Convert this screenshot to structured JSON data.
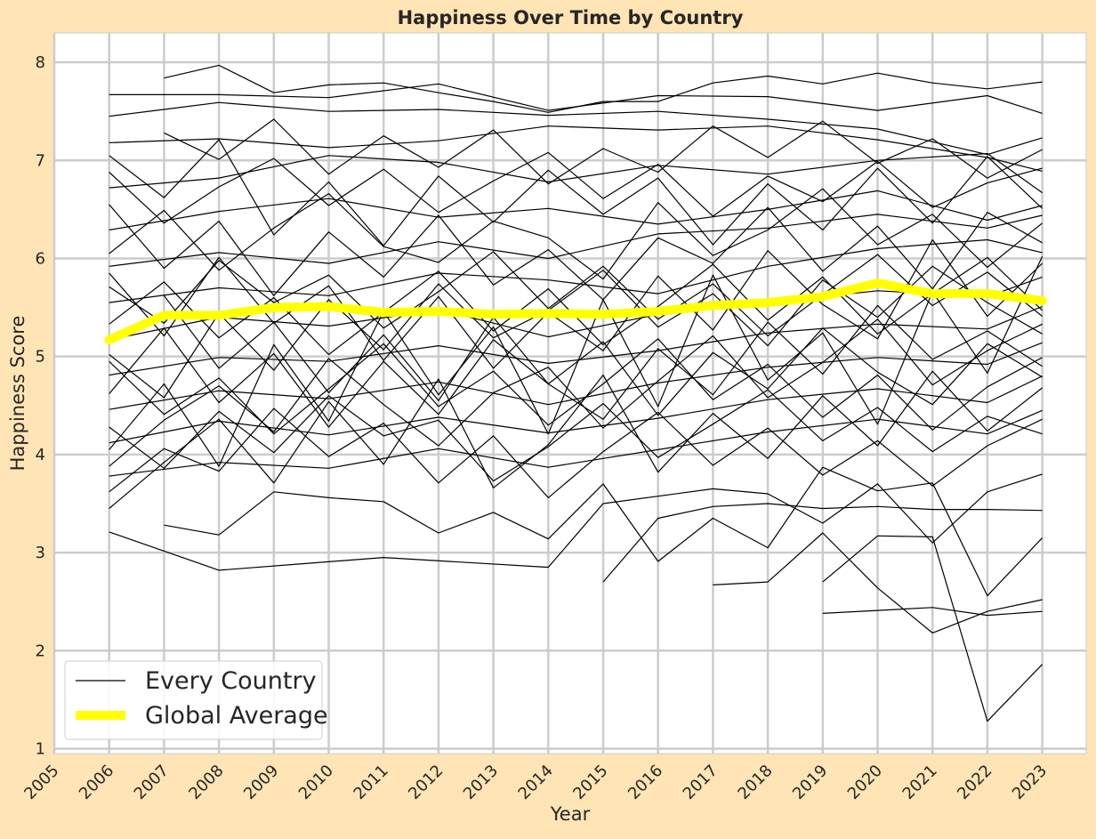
{
  "colors": {
    "figure_background": "#FFE4B5",
    "plot_background": "#FFFFFF",
    "grid": "#CCCCCC",
    "country_line": "#000000",
    "average_line": "#FFFF00",
    "text": "#262626"
  },
  "chart_data": {
    "type": "line",
    "title": "Happiness Over Time by Country",
    "xlabel": "Year",
    "ylabel": "Happiness Score",
    "xlim": [
      2005,
      2023.8
    ],
    "ylim": [
      0.95,
      8.3
    ],
    "x_ticks": [
      "2005",
      "2006",
      "2007",
      "2008",
      "2009",
      "2010",
      "2011",
      "2012",
      "2013",
      "2014",
      "2015",
      "2016",
      "2017",
      "2018",
      "2019",
      "2020",
      "2021",
      "2022",
      "2023"
    ],
    "y_ticks": [
      "1",
      "2",
      "3",
      "4",
      "5",
      "6",
      "7",
      "8"
    ],
    "grid": true,
    "legend_position": "lower-left",
    "legend": [
      {
        "label": "Every Country",
        "style": "thin-black-line"
      },
      {
        "label": "Global Average",
        "style": "thick-yellow-line"
      }
    ],
    "global_average": {
      "name": "Global Average",
      "x": [
        2006,
        2007,
        2008,
        2009,
        2010,
        2011,
        2012,
        2013,
        2014,
        2015,
        2016,
        2017,
        2018,
        2019,
        2020,
        2021,
        2022,
        2023
      ],
      "y": [
        5.17,
        5.42,
        5.42,
        5.5,
        5.51,
        5.45,
        5.46,
        5.43,
        5.44,
        5.43,
        5.46,
        5.52,
        5.55,
        5.61,
        5.75,
        5.64,
        5.64,
        5.57
      ]
    },
    "country_series": [
      {
        "x": [
          2006,
          2008,
          2011,
          2014,
          2015,
          2017,
          2018,
          2019,
          2020,
          2021,
          2022,
          2023
        ],
        "y": [
          3.21,
          2.82,
          2.95,
          2.85,
          3.5,
          3.65,
          3.6,
          3.3,
          3.7,
          3.1,
          3.62,
          3.8
        ]
      },
      {
        "x": [
          2019,
          2020,
          2021,
          2022,
          2023
        ],
        "y": [
          2.38,
          2.41,
          2.44,
          2.36,
          2.4
        ]
      },
      {
        "x": [
          2017,
          2018,
          2019,
          2020,
          2021,
          2022,
          2023
        ],
        "y": [
          2.67,
          2.7,
          3.2,
          2.64,
          2.18,
          2.4,
          2.52
        ]
      },
      {
        "x": [
          2019,
          2020,
          2021,
          2022,
          2023
        ],
        "y": [
          2.7,
          3.17,
          3.16,
          1.28,
          1.86
        ]
      },
      {
        "x": [
          2015,
          2016,
          2017,
          2018,
          2019,
          2020,
          2021,
          2022,
          2023
        ],
        "y": [
          2.7,
          3.35,
          3.47,
          3.5,
          3.45,
          3.47,
          3.44,
          3.44,
          3.43
        ]
      },
      {
        "x": [
          2007,
          2008,
          2009,
          2010,
          2011,
          2012,
          2013,
          2014,
          2015,
          2016,
          2017,
          2018,
          2019,
          2020,
          2021,
          2022,
          2023
        ],
        "y": [
          7.84,
          7.97,
          7.69,
          7.77,
          7.79,
          7.69,
          7.6,
          7.49,
          7.6,
          7.6,
          7.79,
          7.86,
          7.78,
          7.89,
          7.79,
          7.73,
          7.8
        ]
      },
      {
        "x": [
          2006,
          2008,
          2010,
          2012,
          2014,
          2016,
          2018,
          2020,
          2022,
          2023
        ],
        "y": [
          7.67,
          7.67,
          7.64,
          7.78,
          7.51,
          7.66,
          7.65,
          7.51,
          7.66,
          7.48
        ]
      },
      {
        "x": [
          2006,
          2007,
          2008,
          2010,
          2012,
          2014,
          2016,
          2018,
          2020,
          2022,
          2023
        ],
        "y": [
          7.45,
          7.52,
          7.59,
          7.5,
          7.52,
          7.46,
          7.5,
          7.42,
          7.32,
          7.06,
          7.23
        ]
      },
      {
        "x": [
          2006,
          2008,
          2010,
          2012,
          2014,
          2016,
          2018,
          2020,
          2022,
          2023
        ],
        "y": [
          7.18,
          7.22,
          7.13,
          7.2,
          7.35,
          7.31,
          7.35,
          7.21,
          7.03,
          6.89
        ]
      },
      {
        "x": [
          2006,
          2008,
          2010,
          2012,
          2014,
          2016,
          2018,
          2020,
          2022,
          2023
        ],
        "y": [
          6.72,
          6.82,
          7.05,
          6.98,
          6.78,
          6.95,
          6.86,
          7.0,
          7.07,
          6.67
        ]
      },
      {
        "x": [
          2006,
          2008,
          2010,
          2012,
          2014,
          2016,
          2018,
          2020,
          2022,
          2023
        ],
        "y": [
          6.29,
          6.48,
          6.61,
          6.42,
          6.51,
          6.35,
          6.5,
          6.69,
          6.39,
          6.54
        ]
      },
      {
        "x": [
          2006,
          2008,
          2010,
          2012,
          2014,
          2016,
          2018,
          2020,
          2022,
          2023
        ],
        "y": [
          5.92,
          6.06,
          5.95,
          6.17,
          6.0,
          6.25,
          6.31,
          6.45,
          6.31,
          6.44
        ]
      },
      {
        "x": [
          2006,
          2008,
          2010,
          2012,
          2014,
          2016,
          2018,
          2020,
          2022,
          2023
        ],
        "y": [
          5.55,
          5.7,
          5.62,
          5.85,
          5.78,
          5.64,
          5.92,
          6.1,
          6.19,
          6.06
        ]
      },
      {
        "x": [
          2006,
          2008,
          2010,
          2012,
          2014,
          2016,
          2018,
          2020,
          2022,
          2023
        ],
        "y": [
          5.17,
          5.4,
          5.31,
          5.48,
          5.2,
          5.43,
          5.55,
          5.67,
          5.61,
          5.81
        ]
      },
      {
        "x": [
          2006,
          2008,
          2010,
          2012,
          2014,
          2016,
          2018,
          2020,
          2022,
          2023
        ],
        "y": [
          4.81,
          4.99,
          4.95,
          5.11,
          4.93,
          5.06,
          5.24,
          5.33,
          5.28,
          5.51
        ]
      },
      {
        "x": [
          2006,
          2008,
          2010,
          2012,
          2014,
          2016,
          2018,
          2020,
          2022,
          2023
        ],
        "y": [
          4.46,
          4.65,
          4.57,
          4.74,
          4.51,
          4.73,
          4.89,
          4.99,
          4.92,
          5.14
        ]
      },
      {
        "x": [
          2006,
          2008,
          2010,
          2012,
          2014,
          2016,
          2018,
          2020,
          2022,
          2023
        ],
        "y": [
          4.12,
          4.34,
          4.2,
          4.38,
          4.22,
          4.37,
          4.56,
          4.67,
          4.53,
          4.8
        ]
      },
      {
        "x": [
          2006,
          2008,
          2010,
          2012,
          2014,
          2016,
          2018,
          2020,
          2022,
          2023
        ],
        "y": [
          3.78,
          3.92,
          3.86,
          4.06,
          3.87,
          4.05,
          4.23,
          4.36,
          4.21,
          4.45
        ]
      },
      {
        "x": [
          2006,
          2007,
          2008,
          2009,
          2010,
          2011,
          2012,
          2013,
          2014,
          2015,
          2016,
          2017,
          2018,
          2019,
          2020,
          2021,
          2022,
          2023
        ],
        "y": [
          7.05,
          6.62,
          7.21,
          6.24,
          6.78,
          6.13,
          6.84,
          6.37,
          6.9,
          6.45,
          6.82,
          6.14,
          6.76,
          6.29,
          6.92,
          6.36,
          7.04,
          6.51
        ]
      },
      {
        "x": [
          2006,
          2007,
          2008,
          2009,
          2010,
          2011,
          2012,
          2013,
          2014,
          2015,
          2016,
          2017,
          2018,
          2019,
          2020,
          2021,
          2022,
          2023
        ],
        "y": [
          4.05,
          4.72,
          3.88,
          5.12,
          4.34,
          5.46,
          4.61,
          5.3,
          4.21,
          5.58,
          4.49,
          5.83,
          4.76,
          5.24,
          4.31,
          5.66,
          4.83,
          6.02
        ]
      },
      {
        "x": [
          2006,
          2007,
          2008,
          2009,
          2010,
          2011,
          2012,
          2013,
          2014,
          2015,
          2016,
          2017,
          2018,
          2019,
          2020,
          2021,
          2022,
          2023
        ],
        "y": [
          5.85,
          5.21,
          6.01,
          5.34,
          5.72,
          4.96,
          5.61,
          4.88,
          5.45,
          5.06,
          5.82,
          5.27,
          6.08,
          5.53,
          5.18,
          6.19,
          5.41,
          5.95
        ]
      },
      {
        "x": [
          2006,
          2007,
          2008,
          2009,
          2010,
          2011,
          2012,
          2013,
          2014,
          2015,
          2016,
          2017,
          2018,
          2019,
          2020,
          2021,
          2022,
          2023
        ],
        "y": [
          3.45,
          3.92,
          4.36,
          3.71,
          4.54,
          3.9,
          4.77,
          3.66,
          4.1,
          4.81,
          3.82,
          4.42,
          3.96,
          4.6,
          4.09,
          4.85,
          4.24,
          4.68
        ]
      },
      {
        "x": [
          2006,
          2007,
          2008,
          2009,
          2010,
          2011,
          2012,
          2013,
          2014,
          2015,
          2016,
          2017,
          2018,
          2019,
          2020,
          2021,
          2022,
          2023
        ],
        "y": [
          6.55,
          5.9,
          6.38,
          5.62,
          6.27,
          5.81,
          6.44,
          5.73,
          6.09,
          5.58,
          6.21,
          5.95,
          6.52,
          5.87,
          6.33,
          5.69,
          6.47,
          6.16
        ]
      },
      {
        "x": [
          2006,
          2007,
          2008,
          2009,
          2010,
          2011,
          2012,
          2013,
          2014,
          2015,
          2016,
          2017,
          2018,
          2019,
          2020,
          2021,
          2022,
          2023
        ],
        "y": [
          4.62,
          5.29,
          4.53,
          5.03,
          4.28,
          4.95,
          4.41,
          5.17,
          4.72,
          4.36,
          5.08,
          4.61,
          5.35,
          4.82,
          5.52,
          4.97,
          5.26,
          4.9
        ]
      },
      {
        "x": [
          2007,
          2008,
          2009,
          2010,
          2011,
          2012,
          2013,
          2014,
          2015,
          2016,
          2017,
          2018,
          2019,
          2020,
          2021,
          2022,
          2023
        ],
        "y": [
          7.28,
          7.01,
          7.42,
          6.86,
          7.25,
          6.93,
          7.31,
          6.76,
          7.12,
          6.88,
          7.35,
          7.03,
          7.4,
          6.97,
          7.22,
          6.82,
          7.11
        ]
      },
      {
        "x": [
          2007,
          2008,
          2009,
          2010,
          2011,
          2012,
          2013,
          2014,
          2015,
          2016,
          2017,
          2018,
          2019,
          2020,
          2021,
          2022,
          2023
        ],
        "y": [
          3.28,
          3.18,
          3.62,
          3.56,
          3.52,
          3.2,
          3.41,
          3.14,
          3.7,
          2.91,
          3.35,
          3.05,
          3.87,
          3.63,
          3.71,
          2.56,
          3.15
        ]
      },
      {
        "x": [
          2007,
          2008,
          2009,
          2010,
          2011,
          2012,
          2013,
          2014,
          2015,
          2016,
          2017,
          2018,
          2019,
          2020,
          2021,
          2022,
          2023
        ],
        "y": [
          5.62,
          4.88,
          5.35,
          4.63,
          5.22,
          4.55,
          5.4,
          4.72,
          5.15,
          4.4,
          5.04,
          4.67,
          5.29,
          4.84,
          4.51,
          5.13,
          4.79
        ]
      },
      {
        "x": [
          2006,
          2007,
          2008,
          2009,
          2010,
          2011,
          2012,
          2013,
          2014,
          2015,
          2016,
          2017,
          2018,
          2019,
          2020,
          2021,
          2022,
          2023
        ],
        "y": [
          5.02,
          4.58,
          5.44,
          4.86,
          5.58,
          5.07,
          5.74,
          5.19,
          5.47,
          5.88,
          5.3,
          5.64,
          5.11,
          5.78,
          5.4,
          5.92,
          5.55,
          5.23
        ]
      },
      {
        "x": [
          2006,
          2007,
          2008,
          2009,
          2010,
          2011,
          2012,
          2013,
          2014,
          2015,
          2016,
          2017,
          2018,
          2019,
          2020,
          2021,
          2022,
          2023
        ],
        "y": [
          4.28,
          3.86,
          4.44,
          4.02,
          4.6,
          4.19,
          4.35,
          3.73,
          4.08,
          4.52,
          3.97,
          4.31,
          4.66,
          4.14,
          4.48,
          4.03,
          4.39,
          4.21
        ]
      },
      {
        "x": [
          2006,
          2007,
          2008,
          2009,
          2010,
          2011,
          2012,
          2013,
          2014,
          2015,
          2016,
          2017,
          2018,
          2019,
          2020,
          2021,
          2022,
          2023
        ],
        "y": [
          6.05,
          6.49,
          5.88,
          6.31,
          6.66,
          6.12,
          5.96,
          6.38,
          6.21,
          5.79,
          6.57,
          6.03,
          6.29,
          6.71,
          6.14,
          6.45,
          5.91,
          6.36
        ]
      },
      {
        "x": [
          2006,
          2007,
          2008,
          2009,
          2010,
          2011,
          2012,
          2013,
          2014,
          2015,
          2016,
          2017,
          2018,
          2019,
          2020,
          2021,
          2022,
          2023
        ],
        "y": [
          3.88,
          4.35,
          4.7,
          4.23,
          4.98,
          4.51,
          4.09,
          4.63,
          4.89,
          4.27,
          4.75,
          5.21,
          4.58,
          4.94,
          5.38,
          4.71,
          5.06,
          5.33
        ]
      },
      {
        "x": [
          2006,
          2007,
          2008,
          2009,
          2010,
          2011,
          2012,
          2013,
          2014,
          2015,
          2016,
          2017,
          2018,
          2019,
          2020,
          2021,
          2022,
          2023
        ],
        "y": [
          5.33,
          5.76,
          5.19,
          5.6,
          5.02,
          5.45,
          5.87,
          5.26,
          5.69,
          5.12,
          5.51,
          5.94,
          5.37,
          5.81,
          5.23,
          5.64,
          6.01,
          5.47
        ]
      },
      {
        "x": [
          2006,
          2007,
          2008,
          2009,
          2010,
          2011,
          2012,
          2013,
          2014,
          2015,
          2016,
          2017,
          2018,
          2019,
          2020,
          2021,
          2022,
          2023
        ],
        "y": [
          6.88,
          6.36,
          6.73,
          7.02,
          6.54,
          6.91,
          6.47,
          6.79,
          7.08,
          6.61,
          6.96,
          6.43,
          6.84,
          6.58,
          6.99,
          6.52,
          6.77,
          6.92
        ]
      },
      {
        "x": [
          2006,
          2007,
          2008,
          2009,
          2010,
          2011,
          2012,
          2013,
          2014,
          2015,
          2016,
          2017,
          2018,
          2019,
          2020,
          2021,
          2022,
          2023
        ],
        "y": [
          4.95,
          4.41,
          4.78,
          4.21,
          4.67,
          5.13,
          4.49,
          4.85,
          4.3,
          4.72,
          5.18,
          4.56,
          4.92,
          4.38,
          4.81,
          4.25,
          4.69,
          4.99
        ]
      },
      {
        "x": [
          2006,
          2007,
          2008,
          2009,
          2010,
          2011,
          2012,
          2013,
          2014,
          2015,
          2016,
          2017,
          2018,
          2019,
          2020,
          2021,
          2022,
          2023
        ],
        "y": [
          3.62,
          4.06,
          3.83,
          4.47,
          3.98,
          4.32,
          3.71,
          4.19,
          3.56,
          4.03,
          4.43,
          3.89,
          4.27,
          3.79,
          4.14,
          3.68,
          4.09,
          4.36
        ]
      },
      {
        "x": [
          2006,
          2007,
          2008,
          2009,
          2010,
          2011,
          2012,
          2013,
          2014,
          2015,
          2016,
          2017,
          2018,
          2019,
          2020,
          2021,
          2022,
          2023
        ],
        "y": [
          5.71,
          5.34,
          5.98,
          5.55,
          5.83,
          5.29,
          5.66,
          6.07,
          5.49,
          5.92,
          5.38,
          5.74,
          5.21,
          5.63,
          6.04,
          5.52,
          5.86,
          5.41
        ]
      }
    ]
  }
}
